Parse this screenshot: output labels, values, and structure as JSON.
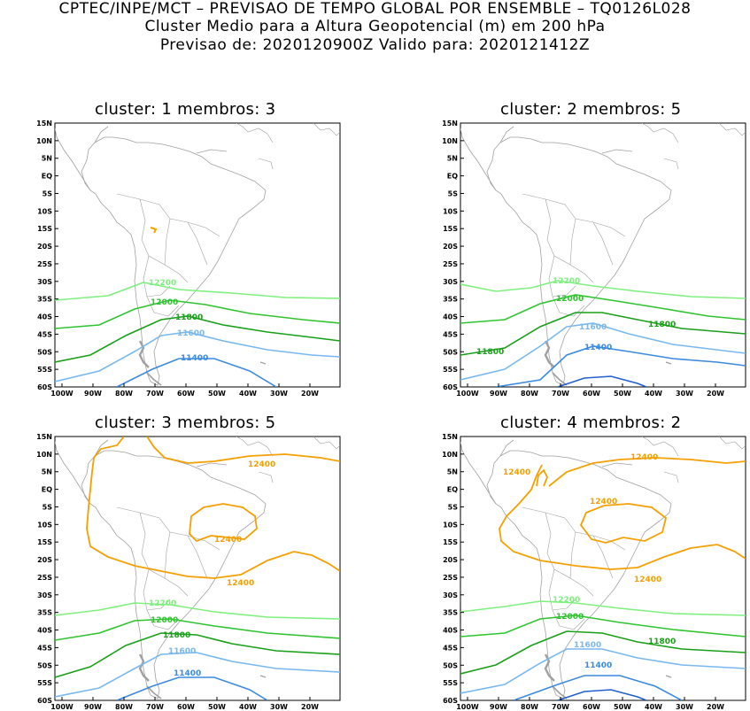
{
  "header": {
    "line1": "CPTEC/INPE/MCT – PREVISAO DE TEMPO GLOBAL POR ENSEMBLE – TQ0126L028",
    "line2": "Cluster Medio para a Altura Geopotencial (m) em 200 hPa",
    "line3": "Previsao de: 2020120900Z    Valido para: 2020121412Z"
  },
  "axes": {
    "lat_labels": [
      "15N",
      "10N",
      "5N",
      "EQ",
      "5S",
      "10S",
      "15S",
      "20S",
      "25S",
      "30S",
      "35S",
      "40S",
      "45S",
      "50S",
      "55S",
      "60S"
    ],
    "lon_labels": [
      "100W",
      "90W",
      "80W",
      "70W",
      "60W",
      "50W",
      "40W",
      "30W",
      "20W"
    ]
  },
  "colors": {
    "c12400": "#f5a000",
    "c12200": "#7ef07e",
    "c12000": "#2ec42e",
    "c11800": "#18a018",
    "c11600": "#78b8f0",
    "c11400": "#3a8ae0",
    "c11200": "#1f5fcf",
    "land": "#a0a0a0"
  },
  "panels": [
    {
      "title": "cluster:  1   membros:  3",
      "labels": {
        "l12200": "12200",
        "l12000": "12000",
        "l11800": "11800",
        "l11600": "11600",
        "l11400": "11400"
      }
    },
    {
      "title": "cluster:  2   membros:  5",
      "labels": {
        "l12200": "12200",
        "l12000": "12000",
        "l11800a": "11800",
        "l11800b": "11800",
        "l11600": "11600",
        "l11400": "11400"
      }
    },
    {
      "title": "cluster:  3   membros:  5",
      "labels": {
        "l12400a": "12400",
        "l12400b": "12400",
        "l12400c": "12400",
        "l12200": "12200",
        "l12000": "12000",
        "l11800": "11800",
        "l11600": "11600",
        "l11400": "11400"
      }
    },
    {
      "title": "cluster:  4   membros:  2",
      "labels": {
        "l12400a": "12400",
        "l12400b": "12400",
        "l12400c": "12400",
        "l12400d": "12400",
        "l12200": "12200",
        "l12000": "12000",
        "l11800": "11800",
        "l11600": "11600",
        "l11400": "11400"
      }
    }
  ]
}
